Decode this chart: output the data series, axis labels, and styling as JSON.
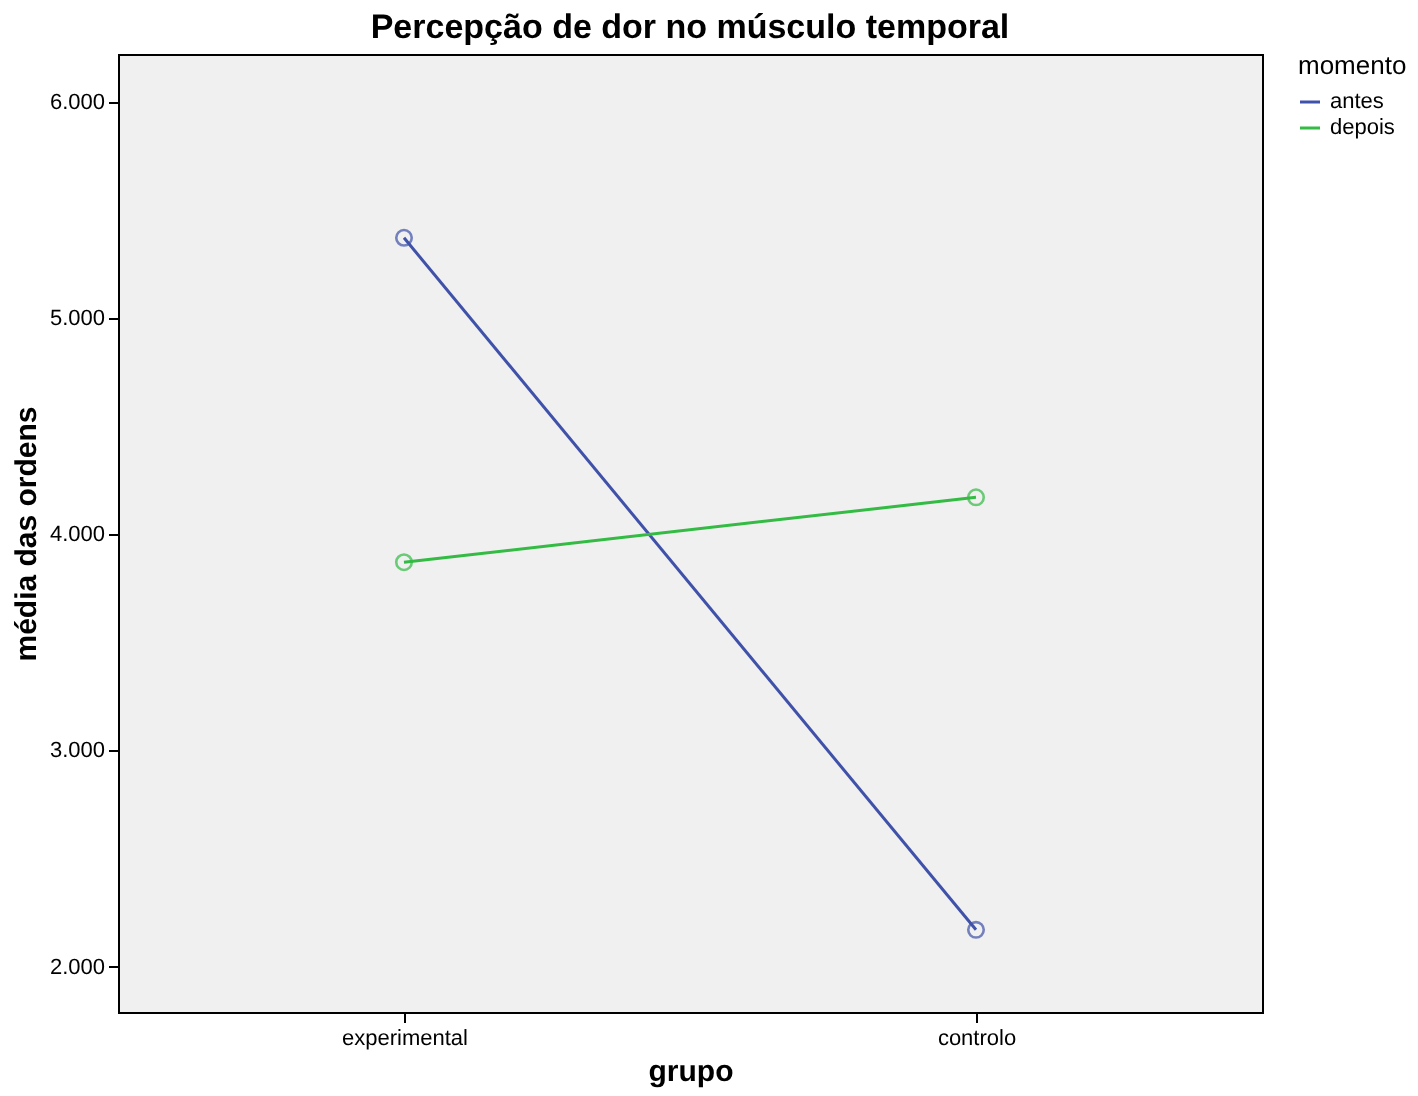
{
  "chart_data": {
    "type": "line",
    "title": "Percepção de dor no músculo temporal",
    "xlabel": "grupo",
    "ylabel": "média das ordens",
    "legend_title": "momento",
    "categories": [
      "experimental",
      "controlo"
    ],
    "series": [
      {
        "name": "antes",
        "color": "#3f51a8",
        "values": [
          5.37,
          2.17
        ]
      },
      {
        "name": "depois",
        "color": "#33bb44",
        "values": [
          3.87,
          4.17
        ]
      }
    ],
    "ylim": [
      1.79,
      6.22
    ],
    "yticks": [
      {
        "value": 2,
        "label": "2.000"
      },
      {
        "value": 3,
        "label": "3.000"
      },
      {
        "value": 4,
        "label": "4.000"
      },
      {
        "value": 5,
        "label": "5.000"
      },
      {
        "value": 6,
        "label": "6.000"
      }
    ],
    "marker": "circle",
    "line_style": "solid",
    "legend": "top right"
  }
}
